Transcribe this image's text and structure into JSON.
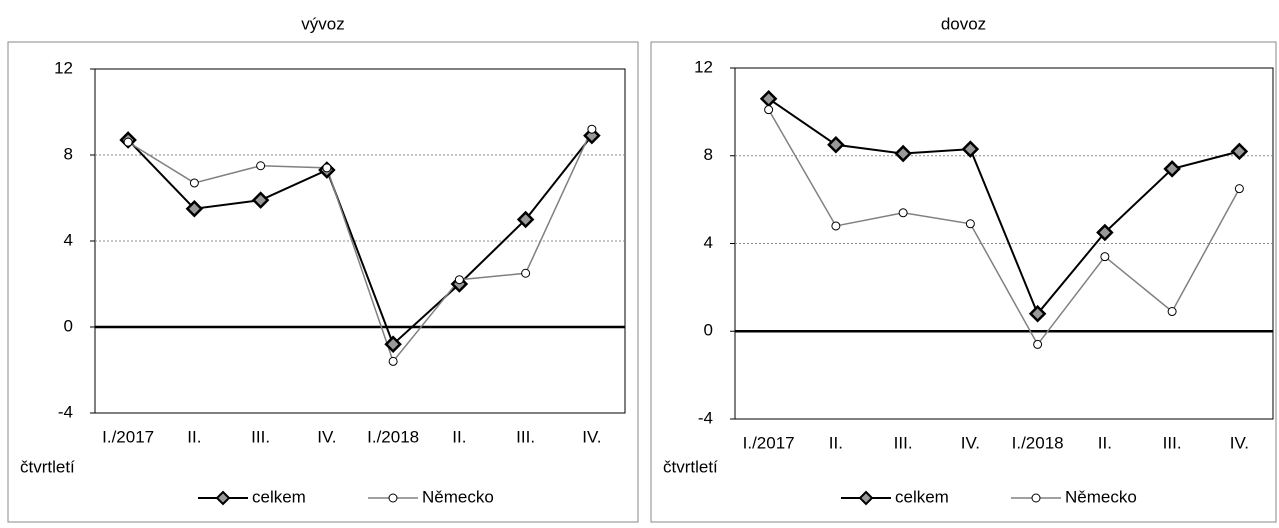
{
  "chart_data": [
    {
      "type": "line",
      "title": "vývoz",
      "xlabel": "čtvrtletí",
      "categories": [
        "I./2017",
        "II.",
        "III.",
        "IV.",
        "I./2018",
        "II.",
        "III.",
        "IV."
      ],
      "series": [
        {
          "name": "celkem",
          "color": "#000000",
          "marker": "diamond",
          "values": [
            8.7,
            5.5,
            5.9,
            7.3,
            -0.8,
            2.0,
            5.0,
            8.9
          ]
        },
        {
          "name": "Německo",
          "color": "#808080",
          "marker": "circle",
          "values": [
            8.6,
            6.7,
            7.5,
            7.4,
            -1.6,
            2.2,
            2.5,
            9.2
          ]
        }
      ],
      "ylim": [
        -4,
        12
      ],
      "yticks": [
        -4,
        0,
        4,
        8,
        12
      ],
      "grid": true
    },
    {
      "type": "line",
      "title": "dovoz",
      "xlabel": "čtvrtletí",
      "categories": [
        "I./2017",
        "II.",
        "III.",
        "IV.",
        "I./2018",
        "II.",
        "III.",
        "IV."
      ],
      "series": [
        {
          "name": "celkem",
          "color": "#000000",
          "marker": "diamond",
          "values": [
            10.6,
            8.5,
            8.1,
            8.3,
            0.8,
            4.5,
            7.4,
            8.2
          ]
        },
        {
          "name": "Německo",
          "color": "#808080",
          "marker": "circle",
          "values": [
            10.1,
            4.8,
            5.4,
            4.9,
            -0.6,
            3.4,
            0.9,
            6.5
          ]
        }
      ],
      "ylim": [
        -4,
        12
      ],
      "yticks": [
        -4,
        0,
        4,
        8,
        12
      ],
      "grid": true
    }
  ]
}
